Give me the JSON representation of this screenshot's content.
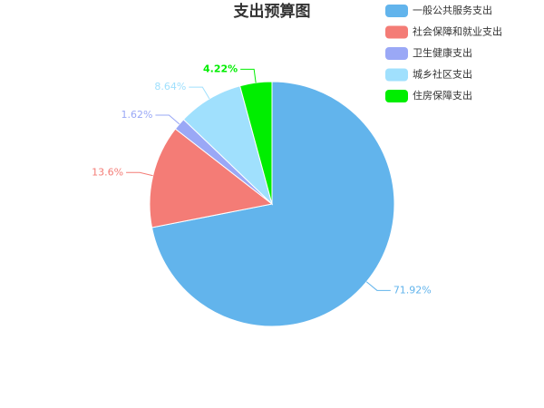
{
  "chart_data": {
    "type": "pie",
    "title": "支出预算图",
    "categories": [
      "一般公共服务支出",
      "社会保障和就业支出",
      "卫生健康支出",
      "城乡社区支出",
      "住房保障支出"
    ],
    "values": [
      71.92,
      13.6,
      1.62,
      8.64,
      4.22
    ],
    "value_labels": [
      "71.92%",
      "13.6%",
      "1.62%",
      "8.64%",
      "4.22%"
    ],
    "colors": [
      "#62b4ec",
      "#f47c76",
      "#9aa8f6",
      "#a0e0fd",
      "#00ee00"
    ],
    "legend": "top-right"
  }
}
